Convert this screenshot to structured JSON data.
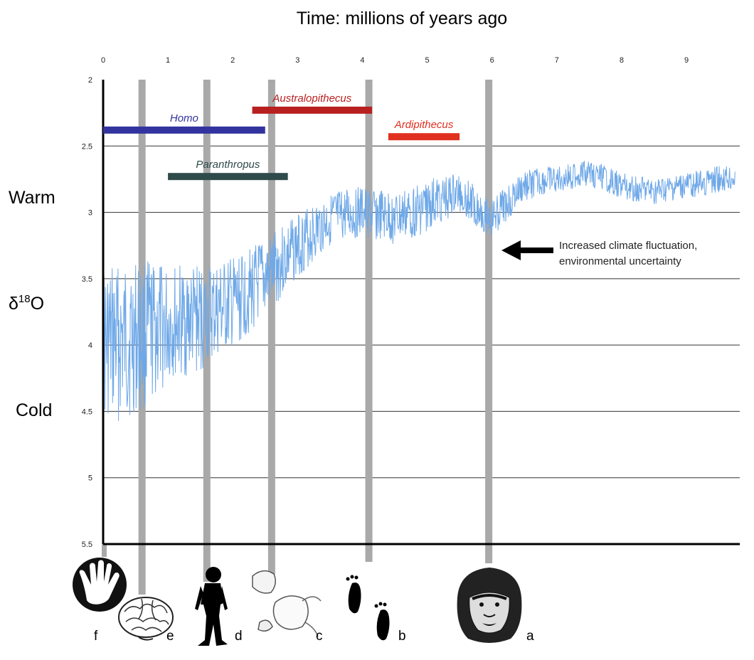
{
  "chart_data": {
    "type": "line",
    "title": "Time:  millions of years ago",
    "x_axis": {
      "range": [
        0,
        9.8
      ],
      "ticks": [
        "0",
        "1",
        "2",
        "3",
        "4",
        "5",
        "6",
        "7",
        "8",
        "9"
      ],
      "position": "top"
    },
    "y_axis": {
      "range": [
        2,
        5.5
      ],
      "inverted": true,
      "ticks": [
        "2",
        "2.5",
        "3",
        "3.5",
        "4",
        "4.5",
        "5",
        "5.5"
      ],
      "label": "δ18O",
      "label_main": "δ",
      "label_sup": "18",
      "label_end": "O",
      "warm_label": "Warm",
      "cold_label": "Cold"
    },
    "grid": "horizontal",
    "series": [
      {
        "color": "#6ea8e8",
        "trend": {
          "x": [
            0,
            0.5,
            1.0,
            1.5,
            2.0,
            2.5,
            3.0,
            3.5,
            4.0,
            4.5,
            5.0,
            5.5,
            6.0,
            6.5,
            7.0,
            7.5,
            8.0,
            8.5,
            9.0,
            9.5,
            9.75
          ],
          "y": [
            4.0,
            3.95,
            3.85,
            3.8,
            3.7,
            3.5,
            3.25,
            3.05,
            3.0,
            3.05,
            2.95,
            2.85,
            3.05,
            2.8,
            2.75,
            2.7,
            2.8,
            2.85,
            2.8,
            2.75,
            2.75
          ],
          "amplitude": [
            0.6,
            0.6,
            0.45,
            0.4,
            0.35,
            0.3,
            0.25,
            0.2,
            0.2,
            0.2,
            0.2,
            0.15,
            0.15,
            0.12,
            0.1,
            0.1,
            0.1,
            0.1,
            0.1,
            0.1,
            0.1
          ]
        }
      }
    ],
    "vertical_bands": [
      0.6,
      1.6,
      2.6,
      4.1,
      5.95
    ],
    "range_bars": [
      {
        "label": "Homo",
        "start": 0,
        "end": 2.5,
        "y": 2.38,
        "color": "#3333a0"
      },
      {
        "label": "Australopithecus",
        "start": 2.3,
        "end": 4.15,
        "y": 2.23,
        "color": "#b82020"
      },
      {
        "label": "Ardipithecus",
        "start": 4.4,
        "end": 5.5,
        "y": 2.43,
        "color": "#e03020"
      },
      {
        "label": "Paranthropus",
        "start": 1.0,
        "end": 2.85,
        "y": 2.73,
        "color": "#2f4a4a"
      }
    ],
    "annotations": [
      {
        "text_line1": "Increased climate fluctuation,",
        "text_line2": "environmental uncertainty",
        "x": 6.2,
        "y": 3.3
      }
    ],
    "bottom_labels": [
      "f",
      "e",
      "d",
      "c",
      "b",
      "a"
    ]
  }
}
